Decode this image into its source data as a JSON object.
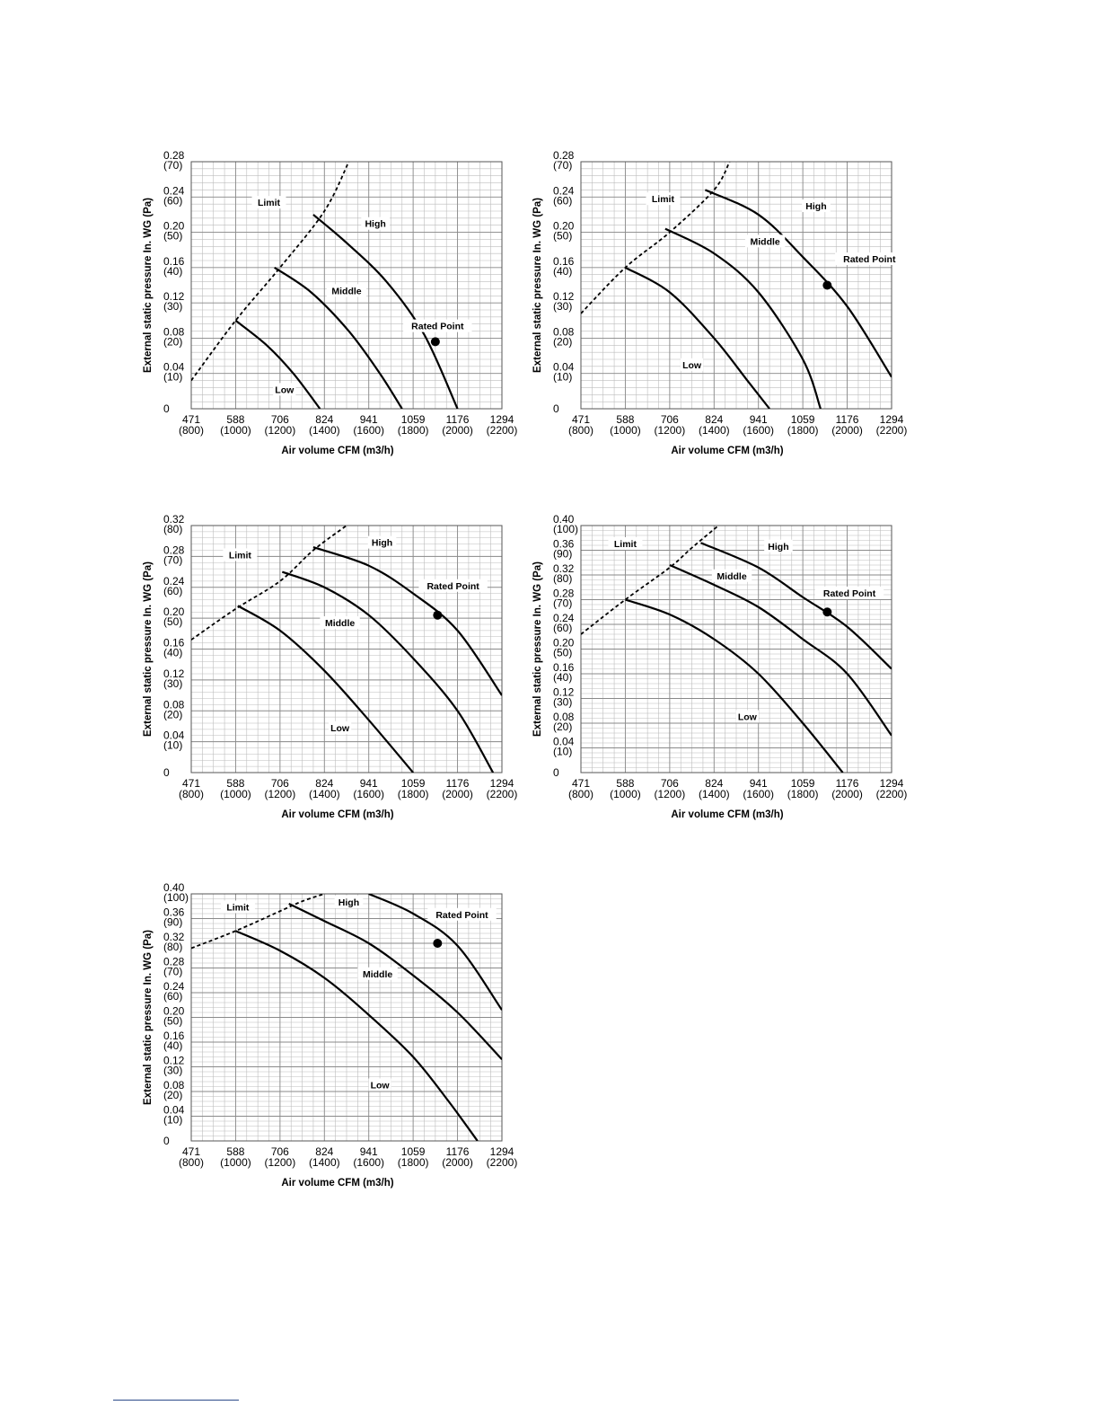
{
  "chart_data": [
    {
      "type": "line",
      "xlabel": "Air volume CFM (m3/h)",
      "ylabel": "External static pressure In. WG (Pa)",
      "xlim": [
        800,
        2200
      ],
      "ylim": [
        0,
        70
      ],
      "x_ticks": [
        {
          "value": 800,
          "cfm": "471",
          "m3h": "(800)"
        },
        {
          "value": 1000,
          "cfm": "588",
          "m3h": "(1000)"
        },
        {
          "value": 1200,
          "cfm": "706",
          "m3h": "(1200)"
        },
        {
          "value": 1400,
          "cfm": "824",
          "m3h": "(1400)"
        },
        {
          "value": 1600,
          "cfm": "941",
          "m3h": "(1600)"
        },
        {
          "value": 1800,
          "cfm": "1059",
          "m3h": "(1800)"
        },
        {
          "value": 2000,
          "cfm": "1176",
          "m3h": "(2000)"
        },
        {
          "value": 2200,
          "cfm": "1294",
          "m3h": "(2200)"
        }
      ],
      "y_ticks": [
        {
          "value": 0,
          "inwg": "0",
          "pa": ""
        },
        {
          "value": 10,
          "inwg": "0.04",
          "pa": "(10)"
        },
        {
          "value": 20,
          "inwg": "0.08",
          "pa": "(20)"
        },
        {
          "value": 30,
          "inwg": "0.12",
          "pa": "(30)"
        },
        {
          "value": 40,
          "inwg": "0.16",
          "pa": "(40)"
        },
        {
          "value": 50,
          "inwg": "0.20",
          "pa": "(50)"
        },
        {
          "value": 60,
          "inwg": "0.24",
          "pa": "(60)"
        },
        {
          "value": 70,
          "inwg": "0.28",
          "pa": "(70)"
        }
      ],
      "series": [
        {
          "name": "Limit",
          "style": "dashed",
          "x": [
            800,
            1000,
            1200,
            1400,
            1510
          ],
          "y": [
            8,
            25,
            40,
            56,
            70
          ]
        },
        {
          "name": "Low",
          "x": [
            1000,
            1140,
            1260,
            1380
          ],
          "y": [
            25,
            18,
            10,
            0
          ]
        },
        {
          "name": "Middle",
          "x": [
            1175,
            1340,
            1510,
            1650,
            1750
          ],
          "y": [
            40,
            33,
            22,
            10,
            0
          ]
        },
        {
          "name": "High",
          "x": [
            1350,
            1500,
            1680,
            1850,
            2000
          ],
          "y": [
            55,
            47,
            36,
            21,
            0
          ]
        }
      ],
      "rated_point": {
        "label": "Rated Point",
        "x": 1900,
        "y": 19
      },
      "label_positions": {
        "Limit": [
          1150,
          58
        ],
        "Low": [
          1220,
          5
        ],
        "Middle": [
          1500,
          33
        ],
        "High": [
          1630,
          52
        ],
        "Rated Point": [
          1910,
          23
        ]
      }
    },
    {
      "type": "line",
      "xlabel": "Air volume CFM (m3/h)",
      "ylabel": "External static pressure In. WG (Pa)",
      "xlim": [
        800,
        2200
      ],
      "ylim": [
        0,
        70
      ],
      "x_ticks": [
        {
          "value": 800,
          "cfm": "471",
          "m3h": "(800)"
        },
        {
          "value": 1000,
          "cfm": "588",
          "m3h": "(1000)"
        },
        {
          "value": 1200,
          "cfm": "706",
          "m3h": "(1200)"
        },
        {
          "value": 1400,
          "cfm": "824",
          "m3h": "(1400)"
        },
        {
          "value": 1600,
          "cfm": "941",
          "m3h": "(1600)"
        },
        {
          "value": 1800,
          "cfm": "1059",
          "m3h": "(1800)"
        },
        {
          "value": 2000,
          "cfm": "1176",
          "m3h": "(2000)"
        },
        {
          "value": 2200,
          "cfm": "1294",
          "m3h": "(2200)"
        }
      ],
      "y_ticks": [
        {
          "value": 0,
          "inwg": "0",
          "pa": ""
        },
        {
          "value": 10,
          "inwg": "0.04",
          "pa": "(10)"
        },
        {
          "value": 20,
          "inwg": "0.08",
          "pa": "(20)"
        },
        {
          "value": 30,
          "inwg": "0.12",
          "pa": "(30)"
        },
        {
          "value": 40,
          "inwg": "0.16",
          "pa": "(40)"
        },
        {
          "value": 50,
          "inwg": "0.20",
          "pa": "(50)"
        },
        {
          "value": 60,
          "inwg": "0.24",
          "pa": "(60)"
        },
        {
          "value": 70,
          "inwg": "0.28",
          "pa": "(70)"
        }
      ],
      "series": [
        {
          "name": "Limit",
          "style": "dashed",
          "x": [
            800,
            1000,
            1200,
            1400,
            1470
          ],
          "y": [
            27,
            40,
            50,
            62,
            70
          ]
        },
        {
          "name": "Low",
          "x": [
            1000,
            1200,
            1400,
            1550,
            1650
          ],
          "y": [
            40,
            33,
            20,
            8,
            0
          ]
        },
        {
          "name": "Middle",
          "x": [
            1180,
            1400,
            1600,
            1800,
            1880
          ],
          "y": [
            51,
            44,
            33,
            14,
            0
          ]
        },
        {
          "name": "High",
          "x": [
            1360,
            1600,
            1800,
            2000,
            2200
          ],
          "y": [
            62,
            55,
            43,
            29,
            9
          ]
        }
      ],
      "rated_point": {
        "label": "Rated Point",
        "x": 1910,
        "y": 35
      },
      "label_positions": {
        "Limit": [
          1170,
          59
        ],
        "Low": [
          1300,
          12
        ],
        "Middle": [
          1630,
          47
        ],
        "High": [
          1860,
          57
        ],
        "Rated Point": [
          2100,
          42
        ]
      }
    },
    {
      "type": "line",
      "xlabel": "Air volume CFM (m3/h)",
      "ylabel": "External static pressure In. WG (Pa)",
      "xlim": [
        800,
        2200
      ],
      "ylim": [
        0,
        80
      ],
      "x_ticks": [
        {
          "value": 800,
          "cfm": "471",
          "m3h": "(800)"
        },
        {
          "value": 1000,
          "cfm": "588",
          "m3h": "(1000)"
        },
        {
          "value": 1200,
          "cfm": "706",
          "m3h": "(1200)"
        },
        {
          "value": 1400,
          "cfm": "824",
          "m3h": "(1400)"
        },
        {
          "value": 1600,
          "cfm": "941",
          "m3h": "(1600)"
        },
        {
          "value": 1800,
          "cfm": "1059",
          "m3h": "(1800)"
        },
        {
          "value": 2000,
          "cfm": "1176",
          "m3h": "(2000)"
        },
        {
          "value": 2200,
          "cfm": "1294",
          "m3h": "(2200)"
        }
      ],
      "y_ticks": [
        {
          "value": 0,
          "inwg": "0",
          "pa": ""
        },
        {
          "value": 10,
          "inwg": "0.04",
          "pa": "(10)"
        },
        {
          "value": 20,
          "inwg": "0.08",
          "pa": "(20)"
        },
        {
          "value": 30,
          "inwg": "0.12",
          "pa": "(30)"
        },
        {
          "value": 40,
          "inwg": "0.16",
          "pa": "(40)"
        },
        {
          "value": 50,
          "inwg": "0.20",
          "pa": "(50)"
        },
        {
          "value": 60,
          "inwg": "0.24",
          "pa": "(60)"
        },
        {
          "value": 70,
          "inwg": "0.28",
          "pa": "(70)"
        },
        {
          "value": 80,
          "inwg": "0.32",
          "pa": "(80)"
        }
      ],
      "series": [
        {
          "name": "Limit",
          "style": "dashed",
          "x": [
            800,
            1000,
            1200,
            1350,
            1500
          ],
          "y": [
            43,
            53,
            62,
            72,
            80
          ]
        },
        {
          "name": "Low",
          "x": [
            1010,
            1200,
            1400,
            1600,
            1800
          ],
          "y": [
            54,
            46,
            33,
            17,
            0
          ]
        },
        {
          "name": "Middle",
          "x": [
            1210,
            1400,
            1600,
            1800,
            2000,
            2160
          ],
          "y": [
            65,
            60,
            51,
            37,
            20,
            0
          ]
        },
        {
          "name": "High",
          "x": [
            1350,
            1600,
            1800,
            2000,
            2200
          ],
          "y": [
            73,
            67,
            58,
            46,
            25
          ]
        }
      ],
      "rated_point": {
        "label": "Rated Point",
        "x": 1910,
        "y": 51
      },
      "label_positions": {
        "Limit": [
          1020,
          70
        ],
        "Low": [
          1470,
          14
        ],
        "Middle": [
          1470,
          48
        ],
        "High": [
          1660,
          74
        ],
        "Rated Point": [
          1980,
          60
        ]
      }
    },
    {
      "type": "line",
      "xlabel": "Air volume CFM (m3/h)",
      "ylabel": "External static pressure In. WG (Pa)",
      "xlim": [
        800,
        2200
      ],
      "ylim": [
        0,
        100
      ],
      "x_ticks": [
        {
          "value": 800,
          "cfm": "471",
          "m3h": "(800)"
        },
        {
          "value": 1000,
          "cfm": "588",
          "m3h": "(1000)"
        },
        {
          "value": 1200,
          "cfm": "706",
          "m3h": "(1200)"
        },
        {
          "value": 1400,
          "cfm": "824",
          "m3h": "(1400)"
        },
        {
          "value": 1600,
          "cfm": "941",
          "m3h": "(1600)"
        },
        {
          "value": 1800,
          "cfm": "1059",
          "m3h": "(1800)"
        },
        {
          "value": 2000,
          "cfm": "1176",
          "m3h": "(2000)"
        },
        {
          "value": 2200,
          "cfm": "1294",
          "m3h": "(2200)"
        }
      ],
      "y_ticks": [
        {
          "value": 0,
          "inwg": "0",
          "pa": ""
        },
        {
          "value": 10,
          "inwg": "0.04",
          "pa": "(10)"
        },
        {
          "value": 20,
          "inwg": "0.08",
          "pa": "(20)"
        },
        {
          "value": 30,
          "inwg": "0.12",
          "pa": "(30)"
        },
        {
          "value": 40,
          "inwg": "0.16",
          "pa": "(40)"
        },
        {
          "value": 50,
          "inwg": "0.20",
          "pa": "(50)"
        },
        {
          "value": 60,
          "inwg": "0.24",
          "pa": "(60)"
        },
        {
          "value": 70,
          "inwg": "0.28",
          "pa": "(70)"
        },
        {
          "value": 80,
          "inwg": "0.32",
          "pa": "(80)"
        },
        {
          "value": 90,
          "inwg": "0.36",
          "pa": "(90)"
        },
        {
          "value": 100,
          "inwg": "0.40",
          "pa": "(100)"
        }
      ],
      "series": [
        {
          "name": "Limit",
          "style": "dashed",
          "x": [
            800,
            1000,
            1200,
            1300,
            1420
          ],
          "y": [
            56,
            70,
            83,
            91,
            100
          ]
        },
        {
          "name": "Low",
          "x": [
            1000,
            1200,
            1400,
            1600,
            1800,
            1980
          ],
          "y": [
            70,
            64,
            54,
            40,
            20,
            0
          ]
        },
        {
          "name": "Middle",
          "x": [
            1200,
            1400,
            1600,
            1800,
            2000,
            2200
          ],
          "y": [
            84,
            76,
            67,
            54,
            40,
            15
          ]
        },
        {
          "name": "High",
          "x": [
            1340,
            1600,
            1800,
            2000,
            2200
          ],
          "y": [
            93,
            83,
            71,
            59,
            42
          ]
        }
      ],
      "rated_point": {
        "label": "Rated Point",
        "x": 1910,
        "y": 65
      },
      "label_positions": {
        "Limit": [
          1000,
          92
        ],
        "Low": [
          1550,
          22
        ],
        "Middle": [
          1480,
          79
        ],
        "High": [
          1690,
          91
        ],
        "Rated Point": [
          2010,
          72
        ]
      }
    },
    {
      "type": "line",
      "xlabel": "Air volume CFM (m3/h)",
      "ylabel": "External static pressure In. WG (Pa)",
      "xlim": [
        800,
        2200
      ],
      "ylim": [
        0,
        100
      ],
      "x_ticks": [
        {
          "value": 800,
          "cfm": "471",
          "m3h": "(800)"
        },
        {
          "value": 1000,
          "cfm": "588",
          "m3h": "(1000)"
        },
        {
          "value": 1200,
          "cfm": "706",
          "m3h": "(1200)"
        },
        {
          "value": 1400,
          "cfm": "824",
          "m3h": "(1400)"
        },
        {
          "value": 1600,
          "cfm": "941",
          "m3h": "(1600)"
        },
        {
          "value": 1800,
          "cfm": "1059",
          "m3h": "(1800)"
        },
        {
          "value": 2000,
          "cfm": "1176",
          "m3h": "(2000)"
        },
        {
          "value": 2200,
          "cfm": "1294",
          "m3h": "(2200)"
        }
      ],
      "y_ticks": [
        {
          "value": 0,
          "inwg": "0",
          "pa": ""
        },
        {
          "value": 10,
          "inwg": "0.04",
          "pa": "(10)"
        },
        {
          "value": 20,
          "inwg": "0.08",
          "pa": "(20)"
        },
        {
          "value": 30,
          "inwg": "0.12",
          "pa": "(30)"
        },
        {
          "value": 40,
          "inwg": "0.16",
          "pa": "(40)"
        },
        {
          "value": 50,
          "inwg": "0.20",
          "pa": "(50)"
        },
        {
          "value": 60,
          "inwg": "0.24",
          "pa": "(60)"
        },
        {
          "value": 70,
          "inwg": "0.28",
          "pa": "(70)"
        },
        {
          "value": 80,
          "inwg": "0.32",
          "pa": "(80)"
        },
        {
          "value": 90,
          "inwg": "0.36",
          "pa": "(90)"
        },
        {
          "value": 100,
          "inwg": "0.40",
          "pa": "(100)"
        }
      ],
      "series": [
        {
          "name": "Limit",
          "style": "dashed",
          "x": [
            800,
            1000,
            1200,
            1300,
            1400
          ],
          "y": [
            78,
            85,
            93,
            97,
            100
          ]
        },
        {
          "name": "Low",
          "x": [
            1000,
            1200,
            1400,
            1600,
            1800,
            1960,
            2090
          ],
          "y": [
            85,
            77,
            66,
            51,
            34,
            16,
            0
          ]
        },
        {
          "name": "Middle",
          "x": [
            1240,
            1400,
            1600,
            1800,
            2000,
            2200
          ],
          "y": [
            96,
            89,
            80,
            67,
            52,
            33
          ]
        },
        {
          "name": "High",
          "x": [
            1600,
            1800,
            2000,
            2200
          ],
          "y": [
            100,
            92,
            79,
            53
          ]
        }
      ],
      "rated_point": {
        "label": "Rated Point",
        "x": 1910,
        "y": 80
      },
      "label_positions": {
        "Limit": [
          1010,
          94
        ],
        "Low": [
          1650,
          22
        ],
        "Middle": [
          1640,
          67
        ],
        "High": [
          1510,
          96
        ],
        "Rated Point": [
          2020,
          91
        ]
      }
    }
  ]
}
